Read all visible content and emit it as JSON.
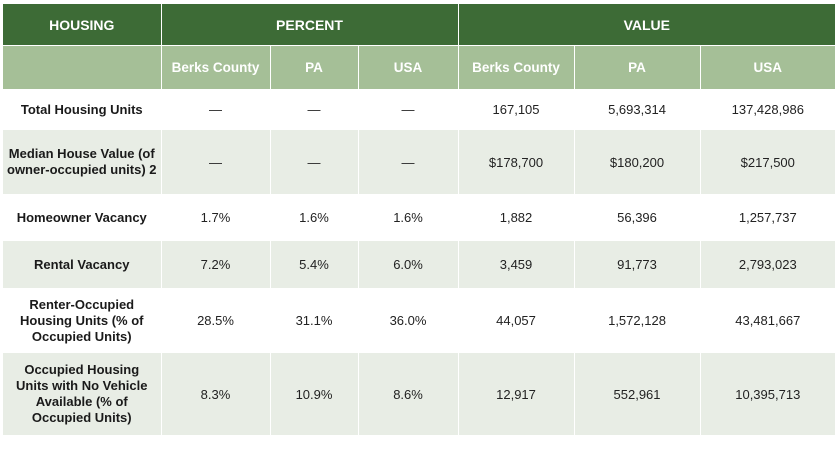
{
  "header": {
    "housing": "HOUSING",
    "percent": "PERCENT",
    "value": "VALUE"
  },
  "subheader": {
    "percent": [
      "Berks County",
      "PA",
      "USA"
    ],
    "value": [
      "Berks County",
      "PA",
      "USA"
    ]
  },
  "rows": [
    {
      "label": "Total Housing Units",
      "percent": [
        "—",
        "—",
        "—"
      ],
      "value": [
        "167,105",
        "5,693,314",
        "137,428,986"
      ]
    },
    {
      "label": "Median House Value (of owner-occupied units) 2",
      "percent": [
        "—",
        "—",
        "—"
      ],
      "value": [
        "$178,700",
        "$180,200",
        "$217,500"
      ]
    },
    {
      "label": "Homeowner Vacancy",
      "percent": [
        "1.7%",
        "1.6%",
        "1.6%"
      ],
      "value": [
        "1,882",
        "56,396",
        "1,257,737"
      ]
    },
    {
      "label": "Rental Vacancy",
      "percent": [
        "7.2%",
        "5.4%",
        "6.0%"
      ],
      "value": [
        "3,459",
        "91,773",
        "2,793,023"
      ]
    },
    {
      "label": "Renter-Occupied Housing Units (% of Occupied Units)",
      "percent": [
        "28.5%",
        "31.1%",
        "36.0%"
      ],
      "value": [
        "44,057",
        "1,572,128",
        "43,481,667"
      ]
    },
    {
      "label": "Occupied Housing Units with No Vehicle Available (% of Occupied Units)",
      "percent": [
        "8.3%",
        "10.9%",
        "8.6%"
      ],
      "value": [
        "12,917",
        "552,961",
        "10,395,713"
      ]
    }
  ]
}
